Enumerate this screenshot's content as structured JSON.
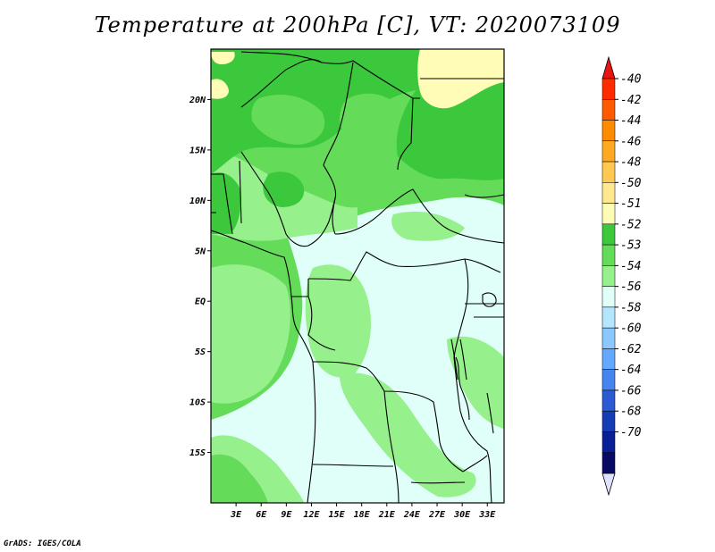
{
  "title": "Temperature at 200hPa [C], VT: 2020073109",
  "credit": "GrADS: IGES/COLA",
  "map": {
    "lon_range": [
      0,
      35
    ],
    "lat_range": [
      -20,
      25
    ],
    "lat_ticks": [
      "20N",
      "15N",
      "10N",
      "5N",
      "EQ",
      "5S",
      "10S",
      "15S"
    ],
    "lat_values": [
      20,
      15,
      10,
      5,
      0,
      -5,
      -10,
      -15
    ],
    "lon_ticks": [
      "3E",
      "6E",
      "9E",
      "12E",
      "15E",
      "18E",
      "21E",
      "24E",
      "27E",
      "30E",
      "33E"
    ],
    "lon_values": [
      3,
      6,
      9,
      12,
      15,
      18,
      21,
      24,
      27,
      30,
      33
    ]
  },
  "colorbar": {
    "labels": [
      "-40",
      "-42",
      "-44",
      "-46",
      "-48",
      "-50",
      "-51",
      "-52",
      "-53",
      "-54",
      "-56",
      "-58",
      "-60",
      "-62",
      "-64",
      "-66",
      "-68",
      "-70"
    ],
    "colors": [
      "#ff2a00",
      "#ff5a00",
      "#ff8c00",
      "#ffaa20",
      "#ffc850",
      "#ffe890",
      "#fffcb8",
      "#3cc83c",
      "#64dc5a",
      "#96f08c",
      "#e0fff8",
      "#b4e6ff",
      "#8cc8ff",
      "#64a8ff",
      "#4684f0",
      "#2c5ad2",
      "#143cb4",
      "#0a1e96",
      "#080a64"
    ],
    "top_color": "#e81414",
    "bottom_color": "#e0e0ff"
  },
  "fields": {
    "warm_color": "#fffcb8",
    "green_dark": "#3cc83c",
    "green_mid": "#64dc5a",
    "green_light": "#96f08c",
    "pale": "#e0fff8"
  }
}
